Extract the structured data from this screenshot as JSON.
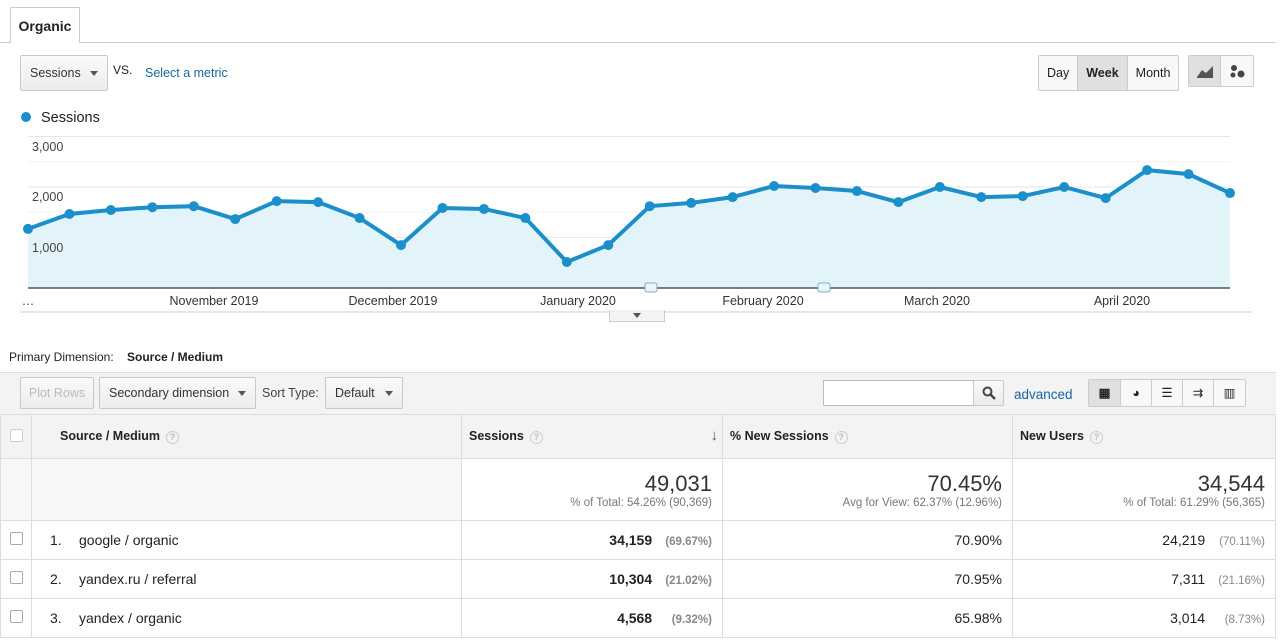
{
  "tab": "Organic",
  "metric_select": "Sessions",
  "vs": "VS.",
  "select_metric": "Select a metric",
  "period_buttons": [
    "Day",
    "Week",
    "Month"
  ],
  "active_period": "Week",
  "legend": "Sessions",
  "colors": {
    "series": "#1a8fc9",
    "fill": "#e3f3fa"
  },
  "chart_data": {
    "type": "area",
    "series": [
      {
        "name": "Sessions",
        "values": [
          1170,
          1465,
          1545,
          1600,
          1620,
          1365,
          1720,
          1700,
          1385,
          850,
          1585,
          1565,
          1385,
          515,
          850,
          1620,
          1685,
          1800,
          2020,
          1980,
          1920,
          1700,
          2000,
          1800,
          1820,
          2000,
          1780,
          2335,
          2255,
          1880
        ]
      }
    ],
    "yticks": [
      "3,000",
      "2,000",
      "1,000"
    ],
    "ylim": [
      0,
      3000
    ],
    "xticks": [
      "…",
      "November 2019",
      "December 2019",
      "January 2020",
      "February 2020",
      "March 2020",
      "April 2020"
    ]
  },
  "primary_dimension_label": "Primary Dimension:",
  "primary_dimension_value": "Source / Medium",
  "toolbar": {
    "plot_rows": "Plot Rows",
    "secondary": "Secondary dimension",
    "sort_type": "Sort Type:",
    "sort_value": "Default",
    "search_placeholder": "",
    "advanced": "advanced"
  },
  "table": {
    "headers": [
      "Source / Medium",
      "Sessions",
      "% New Sessions",
      "New Users"
    ],
    "totals": [
      {
        "value": "49,031",
        "sub": "% of Total: 54.26% (90,369)"
      },
      {
        "value": "70.45%",
        "sub": "Avg for View: 62.37% (12.96%)"
      },
      {
        "value": "34,544",
        "sub": "% of Total: 61.29% (56,365)"
      }
    ],
    "rows": [
      {
        "idx": "1.",
        "source": "google / organic",
        "sessions": "34,159",
        "sessions_pct": "(69.67%)",
        "new_sessions": "70.90%",
        "new_users": "24,219",
        "new_users_pct": "(70.11%)"
      },
      {
        "idx": "2.",
        "source": "yandex.ru / referral",
        "sessions": "10,304",
        "sessions_pct": "(21.02%)",
        "new_sessions": "70.95%",
        "new_users": "7,311",
        "new_users_pct": "(21.16%)"
      },
      {
        "idx": "3.",
        "source": "yandex / organic",
        "sessions": "4,568",
        "sessions_pct": "(9.32%)",
        "new_sessions": "65.98%",
        "new_users": "3,014",
        "new_users_pct": "(8.73%)"
      }
    ]
  }
}
